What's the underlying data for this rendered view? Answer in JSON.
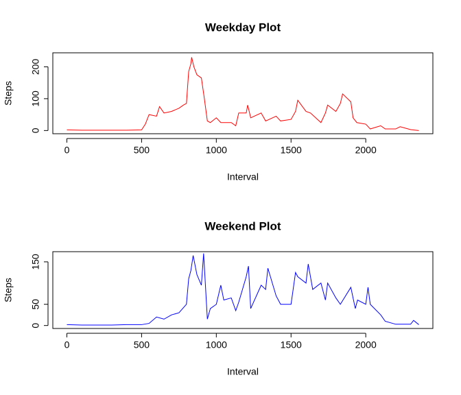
{
  "chart_data": [
    {
      "type": "line",
      "title": "Weekday Plot",
      "x_label": "Interval",
      "y_label": "Steps",
      "xlim": [
        -94,
        2449
      ],
      "ylim": [
        -10,
        244
      ],
      "xticks": [
        0,
        500,
        1000,
        1500,
        2000
      ],
      "yticks": [
        0,
        100,
        200
      ],
      "series": [
        {
          "name": "Weekday",
          "color": "#ff0000",
          "x": [
            0,
            100,
            200,
            300,
            400,
            500,
            525,
            550,
            600,
            620,
            650,
            700,
            750,
            780,
            800,
            815,
            830,
            835,
            850,
            870,
            900,
            920,
            940,
            960,
            1000,
            1030,
            1100,
            1130,
            1150,
            1200,
            1210,
            1230,
            1300,
            1330,
            1400,
            1430,
            1500,
            1530,
            1545,
            1600,
            1630,
            1700,
            1730,
            1745,
            1800,
            1830,
            1845,
            1900,
            1915,
            1940,
            2000,
            2030,
            2100,
            2130,
            2200,
            2230,
            2300,
            2355
          ],
          "values": [
            2,
            1,
            1,
            1,
            1,
            2,
            20,
            50,
            45,
            75,
            55,
            60,
            70,
            80,
            85,
            185,
            210,
            230,
            200,
            175,
            165,
            100,
            30,
            25,
            40,
            25,
            25,
            15,
            55,
            55,
            80,
            40,
            55,
            30,
            45,
            30,
            35,
            60,
            95,
            60,
            55,
            25,
            55,
            80,
            60,
            85,
            115,
            90,
            40,
            25,
            20,
            5,
            15,
            5,
            5,
            12,
            3,
            0
          ]
        }
      ]
    },
    {
      "type": "line",
      "title": "Weekend Plot",
      "x_label": "Interval",
      "y_label": "Steps",
      "xlim": [
        -94,
        2449
      ],
      "ylim": [
        -7,
        174
      ],
      "xticks": [
        0,
        500,
        1000,
        1500,
        2000
      ],
      "yticks": [
        0,
        50,
        150
      ],
      "series": [
        {
          "name": "Weekend",
          "color": "#0000ff",
          "x": [
            0,
            100,
            200,
            300,
            400,
            500,
            550,
            600,
            650,
            700,
            750,
            800,
            815,
            830,
            845,
            870,
            900,
            915,
            940,
            960,
            1000,
            1030,
            1050,
            1100,
            1130,
            1150,
            1200,
            1215,
            1230,
            1300,
            1330,
            1345,
            1400,
            1430,
            1500,
            1530,
            1545,
            1600,
            1615,
            1645,
            1700,
            1730,
            1745,
            1800,
            1830,
            1900,
            1930,
            1945,
            2000,
            2015,
            2030,
            2100,
            2130,
            2200,
            2300,
            2320,
            2355
          ],
          "values": [
            2,
            1,
            1,
            1,
            2,
            2,
            5,
            20,
            15,
            25,
            30,
            50,
            110,
            130,
            165,
            120,
            95,
            170,
            15,
            40,
            50,
            95,
            60,
            65,
            35,
            55,
            115,
            140,
            40,
            95,
            85,
            135,
            70,
            50,
            50,
            125,
            115,
            100,
            145,
            85,
            100,
            60,
            100,
            65,
            50,
            90,
            40,
            60,
            50,
            90,
            50,
            25,
            10,
            3,
            3,
            12,
            2
          ]
        }
      ]
    }
  ]
}
